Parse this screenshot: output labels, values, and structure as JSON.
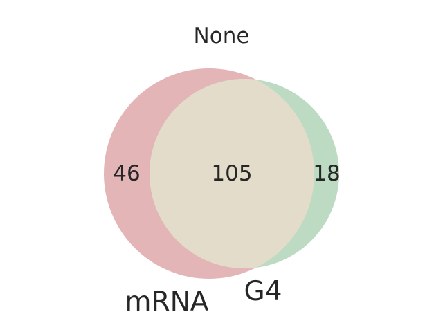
{
  "title": "None",
  "chart_data": {
    "type": "venn",
    "title": "None",
    "sets": [
      {
        "name": "mRNA",
        "only_count": 46,
        "color": "#e3b5b7"
      },
      {
        "name": "G4",
        "only_count": 18,
        "color": "#bddbc3"
      }
    ],
    "intersection": {
      "sets": [
        "mRNA",
        "G4"
      ],
      "count": 105,
      "color": "#e4dccb"
    },
    "regions": {
      "mRNA_only": "46",
      "intersection": "105",
      "G4_only": "18"
    },
    "set_labels": {
      "mRNA": "mRNA",
      "G4": "G4"
    }
  }
}
